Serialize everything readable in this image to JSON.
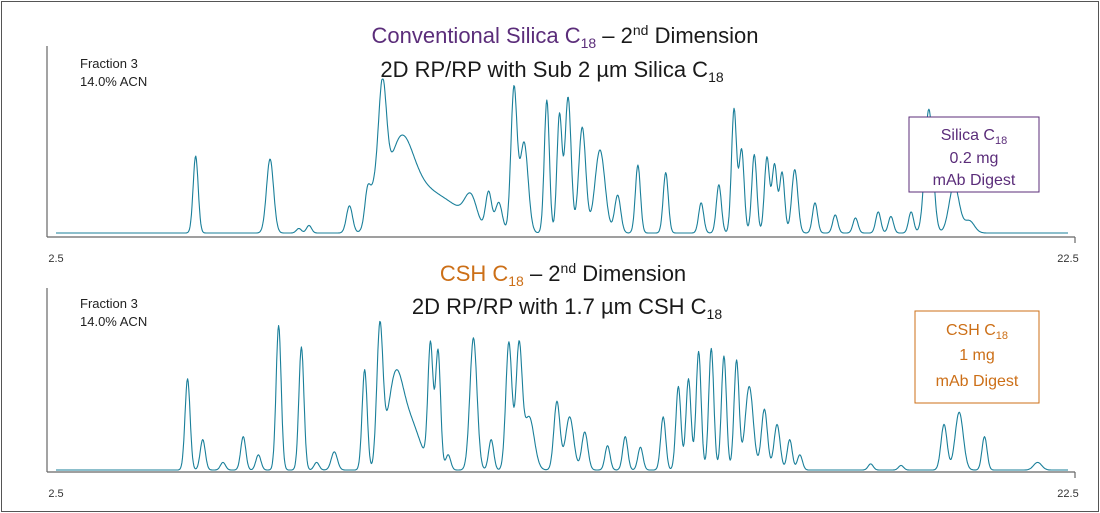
{
  "colors": {
    "trace": "#1a7f9a",
    "purple": "#5b2d7a",
    "orange": "#cc6f17"
  },
  "chart_data": [
    {
      "type": "line",
      "title_parts": [
        "Conventional Silica C",
        "18",
        " – 2",
        "nd",
        " Dimension"
      ],
      "subtitle_parts": [
        "2D RP/RP with Sub 2 µm Silica C",
        "18"
      ],
      "note_lines": [
        "Fraction 3",
        "14.0% ACN"
      ],
      "box_lines": [
        [
          "Silica C",
          "18"
        ],
        [
          "0.2 mg",
          ""
        ],
        [
          "mAb Digest",
          ""
        ]
      ],
      "xlim": [
        2.5,
        22.5
      ],
      "x_tick_labels": [
        "2.5",
        "22.5"
      ],
      "ylim": [
        0,
        1
      ],
      "peaks": [
        [
          5.26,
          0.51,
          0.05
        ],
        [
          6.73,
          0.49,
          0.07
        ],
        [
          7.3,
          0.03,
          0.05
        ],
        [
          7.5,
          0.05,
          0.05
        ],
        [
          8.3,
          0.18,
          0.06
        ],
        [
          8.65,
          0.15,
          0.05
        ],
        [
          8.75,
          0.22,
          0.1
        ],
        [
          8.95,
          0.78,
          0.08
        ],
        [
          9.3,
          0.55,
          0.25
        ],
        [
          9.8,
          0.25,
          0.35
        ],
        [
          10.4,
          0.12,
          0.3
        ],
        [
          10.7,
          0.18,
          0.12
        ],
        [
          11.05,
          0.26,
          0.06
        ],
        [
          11.25,
          0.2,
          0.07
        ],
        [
          11.55,
          0.95,
          0.06
        ],
        [
          11.75,
          0.6,
          0.08
        ],
        [
          12.2,
          0.88,
          0.05
        ],
        [
          12.45,
          0.78,
          0.05
        ],
        [
          12.62,
          0.9,
          0.06
        ],
        [
          12.9,
          0.7,
          0.07
        ],
        [
          13.25,
          0.55,
          0.1
        ],
        [
          13.6,
          0.25,
          0.06
        ],
        [
          14.0,
          0.45,
          0.05
        ],
        [
          14.55,
          0.4,
          0.05
        ],
        [
          15.25,
          0.2,
          0.05
        ],
        [
          15.6,
          0.32,
          0.05
        ],
        [
          15.9,
          0.82,
          0.05
        ],
        [
          16.05,
          0.55,
          0.05
        ],
        [
          16.3,
          0.52,
          0.05
        ],
        [
          16.55,
          0.5,
          0.05
        ],
        [
          16.7,
          0.45,
          0.05
        ],
        [
          16.85,
          0.4,
          0.05
        ],
        [
          17.1,
          0.42,
          0.06
        ],
        [
          17.5,
          0.2,
          0.05
        ],
        [
          17.9,
          0.12,
          0.05
        ],
        [
          18.3,
          0.1,
          0.05
        ],
        [
          18.75,
          0.14,
          0.05
        ],
        [
          19.0,
          0.11,
          0.05
        ],
        [
          19.4,
          0.14,
          0.05
        ],
        [
          19.75,
          0.82,
          0.08
        ],
        [
          20.25,
          0.32,
          0.1
        ],
        [
          20.55,
          0.08,
          0.1
        ]
      ]
    },
    {
      "type": "line",
      "title_parts": [
        "CSH C",
        "18",
        " – 2",
        "nd",
        " Dimension"
      ],
      "subtitle_parts": [
        "2D RP/RP with 1.7 µm CSH C",
        "18"
      ],
      "note_lines": [
        "Fraction 3",
        "14.0% ACN"
      ],
      "box_lines": [
        [
          "CSH C",
          "18"
        ],
        [
          "1 mg",
          ""
        ],
        [
          "mAb Digest",
          ""
        ]
      ],
      "xlim": [
        2.5,
        22.5
      ],
      "x_tick_labels": [
        "2.5",
        "22.5"
      ],
      "ylim": [
        0,
        1
      ],
      "peaks": [
        [
          5.1,
          0.6,
          0.05
        ],
        [
          5.4,
          0.2,
          0.05
        ],
        [
          5.8,
          0.05,
          0.05
        ],
        [
          6.2,
          0.22,
          0.05
        ],
        [
          6.5,
          0.1,
          0.05
        ],
        [
          6.9,
          0.95,
          0.05
        ],
        [
          7.35,
          0.81,
          0.05
        ],
        [
          7.65,
          0.05,
          0.05
        ],
        [
          8.0,
          0.12,
          0.06
        ],
        [
          8.6,
          0.66,
          0.05
        ],
        [
          8.9,
          0.9,
          0.06
        ],
        [
          9.2,
          0.55,
          0.15
        ],
        [
          9.5,
          0.3,
          0.2
        ],
        [
          9.9,
          0.8,
          0.05
        ],
        [
          10.05,
          0.78,
          0.05
        ],
        [
          10.25,
          0.1,
          0.05
        ],
        [
          10.75,
          0.87,
          0.07
        ],
        [
          11.1,
          0.2,
          0.05
        ],
        [
          11.45,
          0.84,
          0.06
        ],
        [
          11.65,
          0.8,
          0.06
        ],
        [
          11.85,
          0.35,
          0.1
        ],
        [
          12.4,
          0.45,
          0.06
        ],
        [
          12.65,
          0.35,
          0.08
        ],
        [
          12.95,
          0.25,
          0.06
        ],
        [
          13.4,
          0.16,
          0.05
        ],
        [
          13.75,
          0.22,
          0.05
        ],
        [
          14.05,
          0.15,
          0.05
        ],
        [
          14.5,
          0.35,
          0.05
        ],
        [
          14.8,
          0.55,
          0.05
        ],
        [
          15.0,
          0.6,
          0.05
        ],
        [
          15.2,
          0.78,
          0.05
        ],
        [
          15.45,
          0.8,
          0.05
        ],
        [
          15.7,
          0.75,
          0.05
        ],
        [
          15.95,
          0.72,
          0.05
        ],
        [
          16.2,
          0.55,
          0.08
        ],
        [
          16.5,
          0.4,
          0.06
        ],
        [
          16.75,
          0.3,
          0.06
        ],
        [
          17.0,
          0.2,
          0.05
        ],
        [
          17.2,
          0.1,
          0.05
        ],
        [
          18.6,
          0.04,
          0.05
        ],
        [
          19.2,
          0.03,
          0.05
        ],
        [
          20.05,
          0.3,
          0.06
        ],
        [
          20.35,
          0.38,
          0.08
        ],
        [
          20.85,
          0.22,
          0.05
        ],
        [
          21.9,
          0.05,
          0.08
        ]
      ]
    }
  ]
}
